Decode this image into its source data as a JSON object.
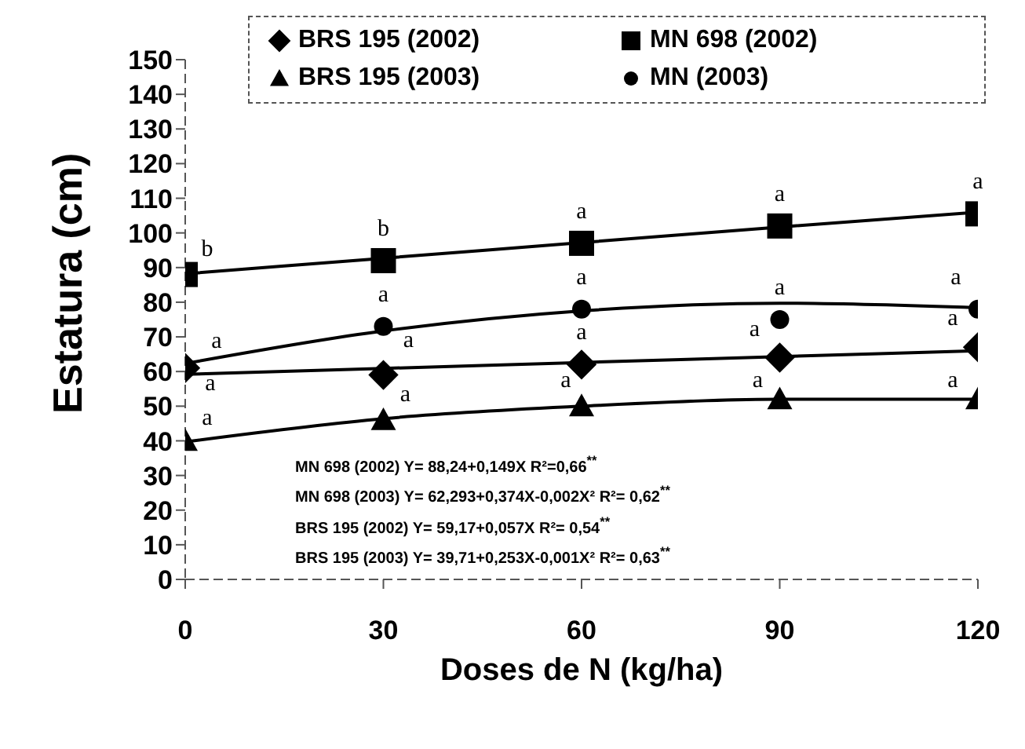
{
  "chart_data": {
    "type": "scatter",
    "xlabel": "Doses de N (kg/ha)",
    "ylabel": "Estatura (cm)",
    "xlim": [
      0,
      120
    ],
    "xticks": [
      0,
      30,
      60,
      90,
      120
    ],
    "ylim": [
      0,
      150
    ],
    "yticks": [
      0,
      10,
      20,
      30,
      40,
      50,
      60,
      70,
      80,
      90,
      100,
      110,
      120,
      130,
      140,
      150
    ],
    "grid": false,
    "legend": "top",
    "series": [
      {
        "name": "BRS 195 (2002)",
        "marker": "diamond",
        "color": "#000000",
        "x": [
          0,
          30,
          60,
          90,
          120
        ],
        "values": [
          61,
          59,
          62,
          64,
          67
        ]
      },
      {
        "name": "MN 698 (2002)",
        "marker": "square",
        "color": "#000000",
        "x": [
          0,
          30,
          60,
          90,
          120
        ],
        "values": [
          88,
          92,
          97,
          102,
          105.5
        ]
      },
      {
        "name": "BRS 195 (2003)",
        "marker": "triangle",
        "color": "#000000",
        "x": [
          0,
          30,
          60,
          90,
          120
        ],
        "values": [
          40,
          46,
          50,
          52,
          52
        ]
      },
      {
        "name": "MN (2003)",
        "marker": "circle",
        "color": "#000000",
        "x": [
          30,
          60,
          90,
          120
        ],
        "values": [
          73,
          78,
          75,
          78
        ]
      },
      {
        "type": "line",
        "marker": "none",
        "color": "#000000",
        "x": [
          0,
          30,
          60,
          90,
          120
        ],
        "values": [
          88.2,
          92.7,
          97.2,
          101.7,
          106
        ]
      },
      {
        "type": "line",
        "marker": "none",
        "color": "#000000",
        "x": [
          0,
          30,
          60,
          90,
          120
        ],
        "values": [
          62.3,
          71.7,
          77.5,
          79.7,
          78.4
        ]
      },
      {
        "type": "line",
        "marker": "none",
        "color": "#000000",
        "x": [
          0,
          30,
          60,
          90,
          120
        ],
        "values": [
          59.2,
          60.9,
          62.6,
          64.3,
          66
        ]
      },
      {
        "type": "line",
        "marker": "none",
        "color": "#000000",
        "x": [
          0,
          30,
          60,
          90,
          120
        ],
        "values": [
          39.7,
          46.4,
          50,
          52,
          52
        ]
      }
    ],
    "annotations": [
      {
        "text": "b",
        "x": 0,
        "y": 88
      },
      {
        "text": "a",
        "x": 0,
        "y": 62.3
      },
      {
        "text": "a",
        "x": 0,
        "y": 61
      },
      {
        "text": "a",
        "x": 0,
        "y": 40
      },
      {
        "text": "b",
        "x": 30,
        "y": 92
      },
      {
        "text": "a",
        "x": 30,
        "y": 73
      },
      {
        "text": "a",
        "x": 30,
        "y": 59
      },
      {
        "text": "a",
        "x": 30,
        "y": 46
      },
      {
        "text": "a",
        "x": 60,
        "y": 97
      },
      {
        "text": "a",
        "x": 60,
        "y": 78
      },
      {
        "text": "a",
        "x": 60,
        "y": 62
      },
      {
        "text": "a",
        "x": 60,
        "y": 50
      },
      {
        "text": "a",
        "x": 90,
        "y": 102
      },
      {
        "text": "a",
        "x": 90,
        "y": 75
      },
      {
        "text": "a",
        "x": 90,
        "y": 64
      },
      {
        "text": "a",
        "x": 90,
        "y": 52
      },
      {
        "text": "a",
        "x": 120,
        "y": 105.5
      },
      {
        "text": "a",
        "x": 120,
        "y": 78
      },
      {
        "text": "a",
        "x": 120,
        "y": 67
      },
      {
        "text": "a",
        "x": 120,
        "y": 52
      },
      "MN 698 (2002) Y= 88,24+0,149X   R²=0,66$^{**}$",
      "MN 698 (2003) Y= 62,293+0,374X-0,002X²   R²= 0,62$^{**}$",
      "BRS 195 (2002) Y= 59,17+0,057X  R²= 0,54$^{**}$",
      "BRS 195 (2003) Y= 39,71+0,253X-0,001X²   R²= 0,63$^{**}$"
    ]
  }
}
